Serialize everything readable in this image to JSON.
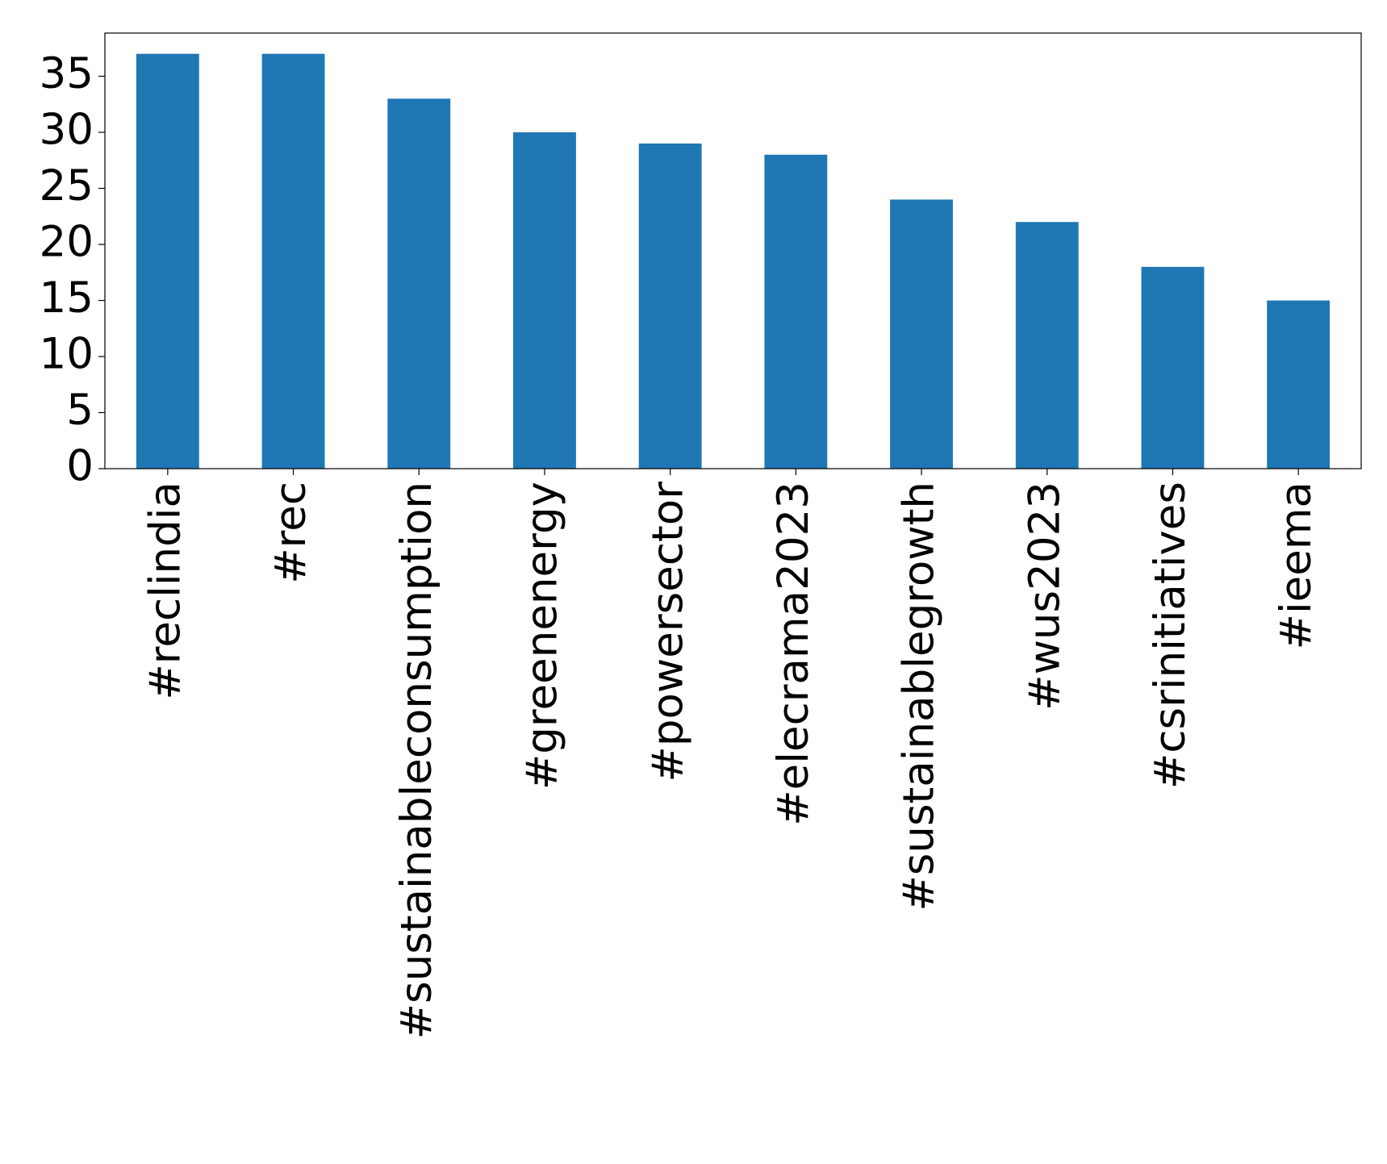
{
  "chart_data": {
    "type": "bar",
    "categories": [
      "#reclindia",
      "#rec",
      "#sustainableconsumption",
      "#greenenergy",
      "#powersector",
      "#elecrama2023",
      "#sustainablegrowth",
      "#wus2023",
      "#csrinitiatives",
      "#ieema"
    ],
    "values": [
      37,
      37,
      33,
      30,
      29,
      28,
      24,
      22,
      18,
      15
    ],
    "color": "#1f77b4",
    "ylim": [
      0,
      38.85
    ],
    "yticks": [
      0,
      5,
      10,
      15,
      20,
      25,
      30,
      35
    ],
    "grid": false
  }
}
